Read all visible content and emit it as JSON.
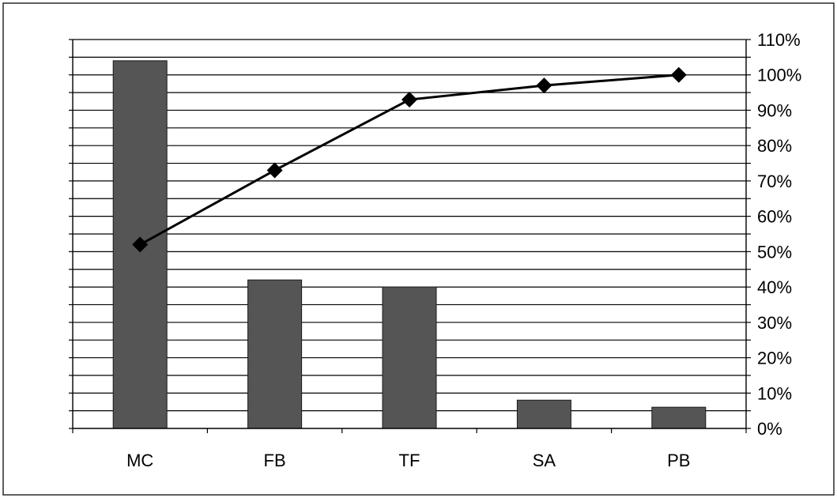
{
  "colors": {
    "bar_fill": "#555555",
    "bar_stroke": "#1a1a1a",
    "line": "#000000",
    "gridline": "#000000",
    "frame": "#2a2a2a",
    "background": "#ffffff"
  },
  "chart_data": {
    "type": "bar",
    "title": "",
    "xlabel": "",
    "ylabel": "",
    "categories": [
      "MC",
      "FB",
      "TF",
      "SA",
      "PB"
    ],
    "series": [
      {
        "type": "bar",
        "axis": "left",
        "values": [
          104,
          42,
          40,
          8,
          6
        ]
      },
      {
        "type": "line",
        "axis": "right",
        "marker": "diamond",
        "values": [
          52,
          73,
          93,
          97,
          100
        ]
      }
    ],
    "right_axis": {
      "ylim": [
        0,
        110
      ],
      "tick_values": [
        0,
        10,
        20,
        30,
        40,
        50,
        60,
        70,
        80,
        90,
        100,
        110
      ],
      "tick_labels": [
        "0%",
        "10%",
        "20%",
        "30%",
        "40%",
        "50%",
        "60%",
        "70%",
        "80%",
        "90%",
        "100%",
        "110%"
      ]
    },
    "left_axis": {
      "ylim": [
        0,
        110
      ],
      "tick_labels_shown": false
    },
    "grid": true,
    "legend": "none"
  }
}
